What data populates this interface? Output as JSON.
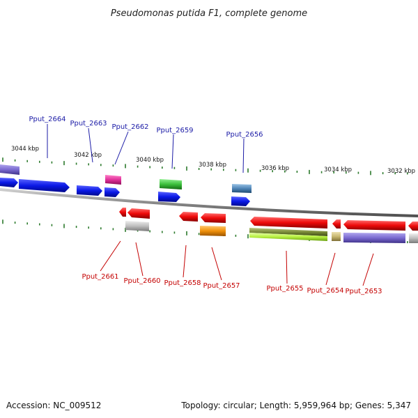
{
  "title": "Pseudomonas putida F1, complete genome",
  "footer": {
    "accession": "Accession: NC_009512",
    "info": "Topology: circular; Length: 5,959,964 bp; Genes: 5,347"
  },
  "kbp_labels": [
    "3044 kbp",
    "3042 kbp",
    "3040 kbp",
    "3038 kbp",
    "3036 kbp",
    "3034 kbp",
    "3032 kbp"
  ],
  "gene_labels_top": [
    "Pput_2664",
    "Pput_2663",
    "Pput_2662",
    "Pput_2659",
    "Pput_2656"
  ],
  "gene_labels_bottom": [
    "Pput_2661",
    "Pput_2660",
    "Pput_2658",
    "Pput_2657",
    "Pput_2655",
    "Pput_2654",
    "Pput_2653"
  ],
  "colors": {
    "blue": "#0a18e6",
    "red": "#ee0a0a",
    "purple": "#7a6ad0",
    "magenta": "#e0309a",
    "green": "#3cbf3c",
    "steel": "#4f86b8",
    "orange": "#f0900a",
    "olive": "#7c8c3a",
    "lime": "#b8f040",
    "khaki": "#c8b870",
    "grey": "#bdbdbd",
    "tick": "#2c7a2c",
    "backbone": "#8a8a8a",
    "top_label": "#1a1aa6",
    "bottom_label": "#c40000"
  }
}
